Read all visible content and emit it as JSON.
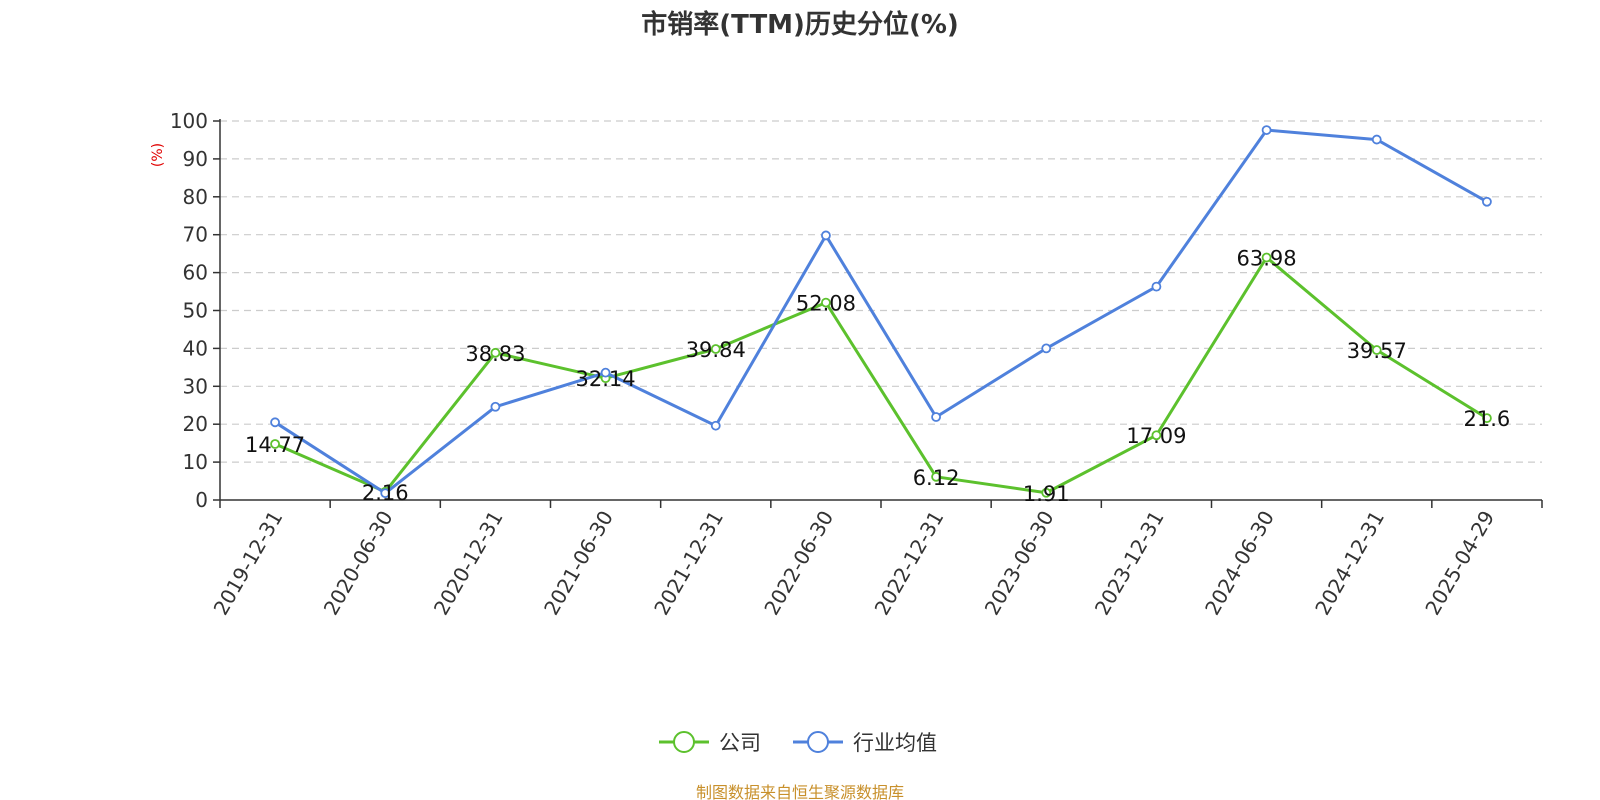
{
  "chart_data": {
    "type": "line",
    "title": "市销率(TTM)历史分位(%)",
    "ylabel": "(%)",
    "xlabel": "",
    "ylim": [
      0,
      100
    ],
    "yticks": [
      0,
      10,
      20,
      30,
      40,
      50,
      60,
      70,
      80,
      90,
      100
    ],
    "grid": true,
    "legend_position": "bottom-center",
    "categories": [
      "2019-12-31",
      "2020-06-30",
      "2020-12-31",
      "2021-06-30",
      "2021-12-31",
      "2022-06-30",
      "2022-12-31",
      "2023-06-30",
      "2023-12-31",
      "2024-06-30",
      "2024-12-31",
      "2025-04-29"
    ],
    "series": [
      {
        "name": "公司",
        "color": "#5cc12d",
        "show_labels": true,
        "values": [
          14.77,
          2.16,
          38.83,
          32.14,
          39.84,
          52.08,
          6.12,
          1.91,
          17.09,
          63.98,
          39.57,
          21.6
        ]
      },
      {
        "name": "行业均值",
        "color": "#4f81dc",
        "show_labels": false,
        "values": [
          20.5,
          1.8,
          24.6,
          33.6,
          19.6,
          69.8,
          21.9,
          40.0,
          56.3,
          97.6,
          95.1,
          78.7
        ]
      }
    ]
  },
  "source_text": "制图数据来自恒生聚源数据库"
}
